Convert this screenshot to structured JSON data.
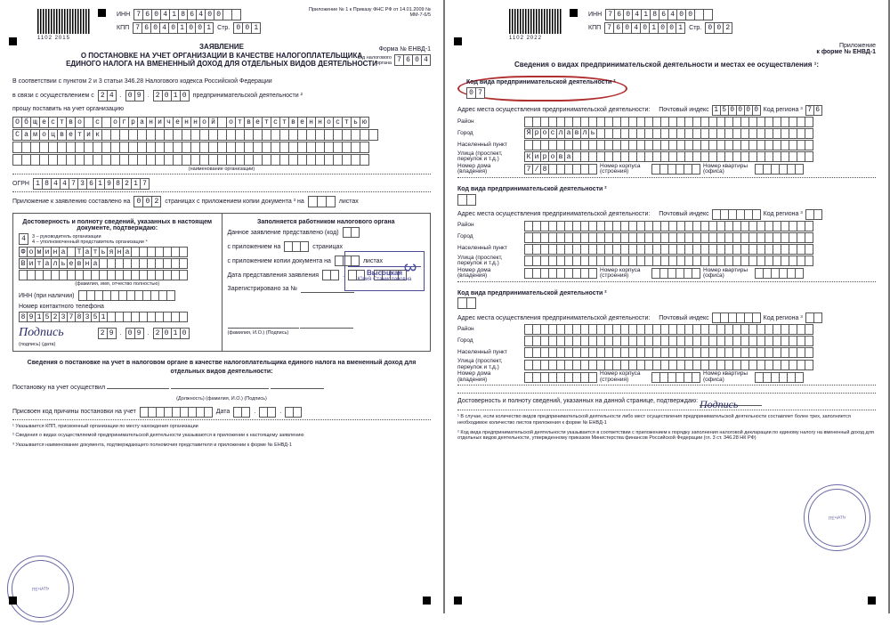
{
  "header": {
    "barcode_p1": "1102 2015",
    "barcode_p2": "1102 2022",
    "inn_label": "ИНН",
    "inn": [
      "7",
      "6",
      "0",
      "4",
      "1",
      "8",
      "6",
      "4",
      "0",
      "0",
      "",
      ""
    ],
    "kpp_label": "КПП",
    "kpp": [
      "7",
      "6",
      "0",
      "4",
      "0",
      "1",
      "0",
      "0",
      "1"
    ],
    "str_label": "Стр.",
    "str1": [
      "0",
      "0",
      "1"
    ],
    "str2": [
      "0",
      "0",
      "2"
    ],
    "prilozhenie": "Приложение",
    "prilozhenie_form": "к форме № ЕНВД-1",
    "tiny_ref": "Приложение № 1 к Приказу ФНС РФ от 14.01.2009 № ММ-7-6/5"
  },
  "form": {
    "form_num": "Форма № ЕНВД-1",
    "kod_organa_lbl": "код налогового органа",
    "kod_organa": [
      "7",
      "6",
      "0",
      "4"
    ],
    "title_l1": "ЗАЯВЛЕНИЕ",
    "title_l2": "О ПОСТАНОВКЕ НА УЧЕТ ОРГАНИЗАЦИИ В КАЧЕСТВЕ НАЛОГОПЛАТЕЛЬЩИКА",
    "title_l3": "ЕДИНОГО НАЛОГА НА ВМЕНЕННЫЙ ДОХОД ДЛЯ ОТДЕЛЬНЫХ ВИДОВ ДЕЯТЕЛЬНОСТИ",
    "soot_text": "В соответствии с пунктом 2 и 3 статьи 346.28 Налогового кодекса Российской Федерации",
    "svyazi": "в связи с осуществлением с",
    "date1": [
      [
        "2",
        "4"
      ],
      [
        "0",
        "9"
      ],
      [
        "2",
        "0",
        "1",
        "0"
      ]
    ],
    "pred_deyat": "предпринимательской деятельности ²",
    "proshu": "прошу поставить на учет организацию",
    "org_row1": [
      "О",
      "б",
      "щ",
      "е",
      "с",
      "т",
      "в",
      "о",
      "",
      "с",
      "",
      "о",
      "г",
      "р",
      "а",
      "н",
      "и",
      "ч",
      "е",
      "н",
      "н",
      "о",
      "й",
      "",
      "о",
      "т",
      "в",
      "е",
      "т",
      "с",
      "т",
      "в",
      "е",
      "н",
      "н",
      "о",
      "с",
      "т",
      "ь",
      "ю"
    ],
    "org_row2": [
      "С",
      "а",
      "м",
      "о",
      "ц",
      "в",
      "е",
      "т",
      "и",
      "к",
      "",
      "",
      "",
      "",
      "",
      "",
      "",
      "",
      "",
      "",
      "",
      "",
      "",
      "",
      "",
      "",
      "",
      "",
      "",
      "",
      "",
      "",
      "",
      "",
      "",
      "",
      "",
      "",
      "",
      "",
      ""
    ],
    "org_row3_empty": true,
    "org_row4_empty": true,
    "naim_org": "(наименование организации)",
    "ogrn_lbl": "ОГРН",
    "ogrn": [
      "1",
      "8",
      "4",
      "4",
      "7",
      "3",
      "6",
      "1",
      "9",
      "8",
      "2",
      "1",
      "7"
    ],
    "pril_text": "Приложение к заявлению составлено на",
    "pril_pages": [
      "0",
      "0",
      "2"
    ],
    "pril_text2": "страницах     с приложением копии документа ³ на",
    "pril_sheets": [
      "",
      "",
      ""
    ],
    "pril_text3": "листах"
  },
  "confirm": {
    "head_left": "Достоверность и полноту сведений, указанных в настоящем документе, подтверждаю:",
    "head_right": "Заполняется работником налогового органа",
    "code4": "4",
    "code_note": "3 – руководитель организации\n4 – уполномоченный представитель организации ⁴",
    "name_r1": [
      "Ф",
      "о",
      "м",
      "и",
      "н",
      "а",
      "",
      "Т",
      "а",
      "т",
      "ь",
      "я",
      "н",
      "а",
      "",
      "",
      "",
      "",
      "",
      "",
      ""
    ],
    "name_r2": [
      "В",
      "и",
      "т",
      "а",
      "л",
      "ь",
      "е",
      "в",
      "н",
      "а",
      "",
      "",
      "",
      "",
      "",
      "",
      "",
      "",
      "",
      "",
      ""
    ],
    "name_r3_empty": true,
    "name_note": "(фамилия, имя, отчество полностью)",
    "inn_nal": "ИНН (при наличии)",
    "inn_nal_cells": [
      "",
      "",
      "",
      "",
      "",
      "",
      "",
      "",
      "",
      "",
      "",
      ""
    ],
    "tel_lbl": "Номер контактного телефона",
    "tel": [
      "8",
      "9",
      "1",
      "5",
      "2",
      "3",
      "7",
      "8",
      "3",
      "5",
      "1",
      "",
      "",
      "",
      "",
      "",
      "",
      "",
      "",
      "",
      ""
    ],
    "sign_date": [
      [
        "2",
        "9"
      ],
      [
        "0",
        "9"
      ],
      [
        "2",
        "0",
        "1",
        "0"
      ]
    ],
    "sign_note": "(подпись)                                          (дата)",
    "right_r1": "Данное заявление представлено (код)",
    "right_r2": "с приложением на",
    "right_r2b": "страницах",
    "right_r3": "с приложением копии документа на",
    "right_r3b": "листах",
    "right_r4": "Дата представления заявления",
    "right_r5": "Зарегистрировано за №",
    "right_sign": "(фамилия, И.О.)                     (Подпись)",
    "stamp_name": "Высоцкая",
    "stamp_name2": "Юлия Станиславовна"
  },
  "bottom": {
    "sved": "Сведения о постановке на учет в налоговом органе в качестве налогоплательщика единого налога на вмененный доход для отдельных видов деятельности:",
    "post": "Постановку на учет осуществил",
    "post_note": "(Должность)                                                            (фамилия, И.О.)                                          (Подпись)",
    "prisv": "Присвоен код причины постановки на учет",
    "prisv_cells": 9,
    "data_lbl": "Дата",
    "foot1": "¹ Указывается КПП, присвоенный организации по месту нахождения организации",
    "foot2": "² Сведения о видах осуществляемой предпринимательской деятельности указываются в приложении к настоящему заявлению",
    "foot3": "³ Указывается наименование документа, подтверждающего полномочия представителя и приложении к форме № ЕНВД-1"
  },
  "p2": {
    "title": "Сведения о видах предпринимательской деятельности и местах ее осуществления ¹:",
    "kod_vida": "Код вида предпринимательской деятельности ²",
    "kod_vida_val": [
      "0",
      "7"
    ],
    "addr_mesta": "Адрес места осуществления предпринимательской деятельности:",
    "pocht_idx": "Почтовый индекс",
    "pocht_val": [
      "1",
      "5",
      "0",
      "0",
      "0",
      "0"
    ],
    "kod_reg": "Код региона ³",
    "kod_reg_val": [
      "7",
      "6"
    ],
    "rayon": "Район",
    "gorod": "Город",
    "gorod_val": [
      "Я",
      "р",
      "о",
      "с",
      "л",
      "а",
      "в",
      "л",
      "ь",
      "",
      "",
      "",
      "",
      "",
      "",
      "",
      "",
      "",
      "",
      "",
      "",
      "",
      "",
      "",
      "",
      "",
      "",
      "",
      "",
      "",
      "",
      "",
      "",
      "",
      "",
      ""
    ],
    "nasel": "Населенный пункт",
    "ulica": "Улица (проспект, переулок и т.д.)",
    "ulica_val": [
      "К",
      "и",
      "р",
      "о",
      "в",
      "а",
      "",
      "",
      "",
      "",
      "",
      "",
      "",
      "",
      "",
      "",
      "",
      "",
      "",
      "",
      "",
      "",
      "",
      "",
      "",
      "",
      "",
      "",
      "",
      "",
      "",
      "",
      "",
      "",
      "",
      ""
    ],
    "dom": "Номер дома (владения)",
    "dom_val": [
      "7",
      "/",
      "8",
      "",
      "",
      "",
      "",
      "",
      ""
    ],
    "korpus": "Номер корпуса (строения)",
    "kvart": "Номер квартиры (офиса)",
    "dost": "Достоверность и полноту сведений, указанных на данной странице, подтверждаю:",
    "foot1": "¹ В случае, если количество видов предпринимательской деятельности либо мест осуществления предпринимательской деятельности составляет более трех, заполняется необходимое количество листов приложения к форме № ЕНВД-1",
    "foot2": "² Код вида предпринимательской деятельности указывается в соответствии с приложением к порядку заполнения налоговой декларации по единому налогу на вмененный доход для отдельных видов деятельности, утвержденному приказом Министерства финансов Российской Федерации (гл. 3 ст. 346.28 НК РФ)"
  },
  "colors": {
    "border": "#555",
    "stamp": "#3a3a8a",
    "circle": "#b03030"
  }
}
